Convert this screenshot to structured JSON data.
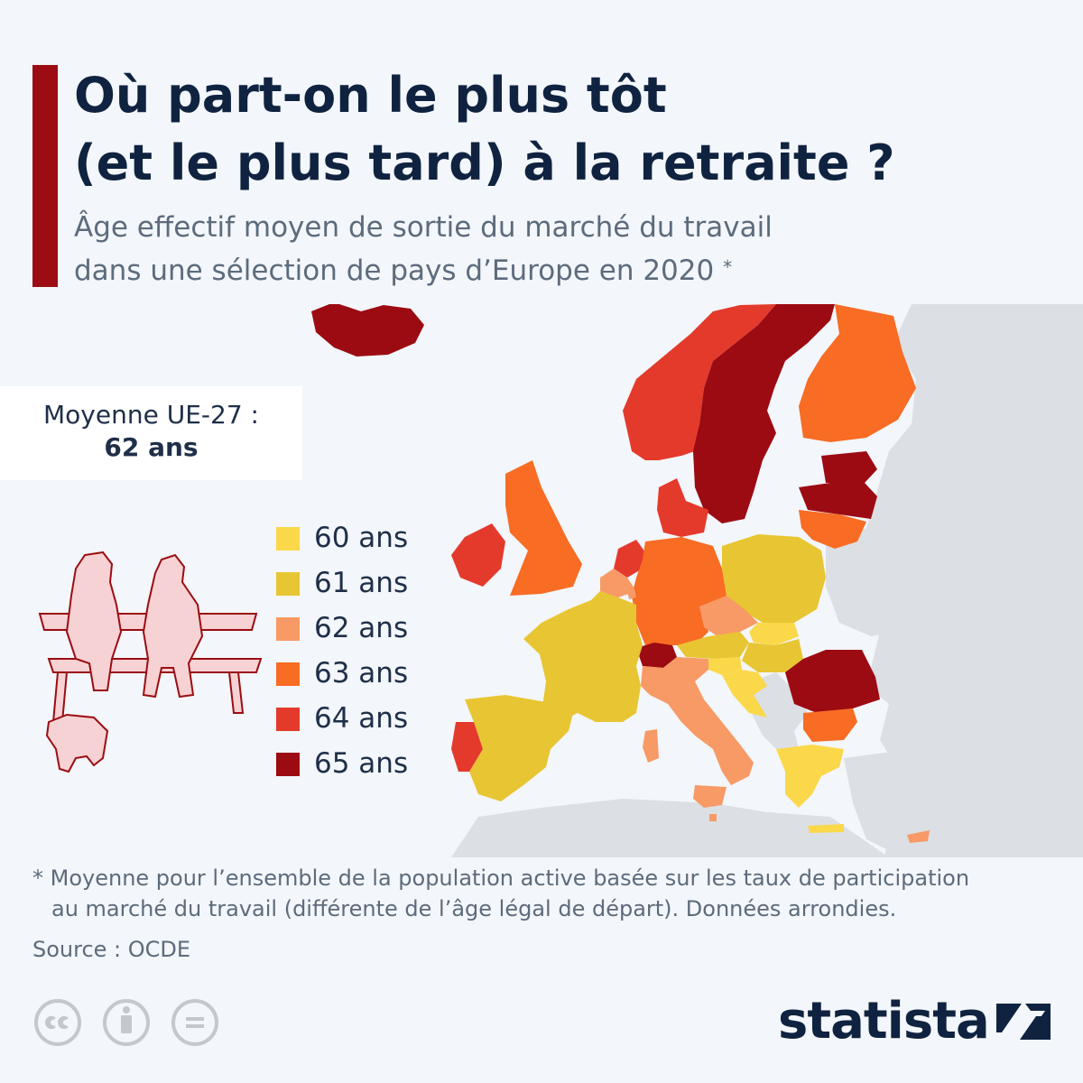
{
  "title": {
    "line1": "Où part-on le plus tôt",
    "line2": "(et le plus tard) à la retraite ?"
  },
  "subtitle": {
    "line1": "Âge effectif moyen de sortie du marché du travail",
    "line2": "dans une sélection de pays d’Europe en 2020",
    "footnote_mark": "*"
  },
  "eu_average": {
    "label": "Moyenne UE-27 :",
    "value": "62 ans"
  },
  "legend": [
    {
      "label": "60 ans",
      "color": "#fbd84a"
    },
    {
      "label": "61 ans",
      "color": "#e8c532"
    },
    {
      "label": "62 ans",
      "color": "#f79a66"
    },
    {
      "label": "63 ans",
      "color": "#f86c24"
    },
    {
      "label": "64 ans",
      "color": "#e43a2c"
    },
    {
      "label": "65 ans",
      "color": "#9c0b12"
    }
  ],
  "colors": {
    "title_bar": "#9b0d12",
    "non_selected_land": "#dcdfe3",
    "background": "#f3f6fa"
  },
  "footnote": {
    "line1": "* Moyenne pour l’ensemble de la population active basée sur les taux de participation",
    "line2": "au marché du travail (différente de l’âge légal de départ). Données arrondies."
  },
  "source": "Source : OCDE",
  "brand": "statista",
  "license_icons": [
    "cc-icon",
    "attribution-icon",
    "no-derivatives-icon"
  ]
}
